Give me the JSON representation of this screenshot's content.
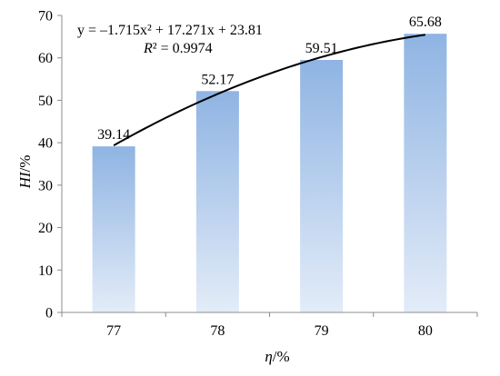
{
  "chart_data": {
    "type": "bar",
    "categories": [
      "77",
      "78",
      "79",
      "80"
    ],
    "values": [
      39.14,
      52.17,
      59.51,
      65.68
    ],
    "data_labels": [
      "39.14",
      "52.17",
      "59.51",
      "65.68"
    ],
    "ylim": [
      0,
      70
    ],
    "yticks": [
      0,
      10,
      20,
      30,
      40,
      50,
      60,
      70
    ],
    "ytick_labels": [
      "0",
      "10",
      "20",
      "30",
      "40",
      "50",
      "60",
      "70"
    ],
    "xlabel": {
      "symbol": "η",
      "unit": "/%"
    },
    "ylabel": {
      "symbol": "HI",
      "unit": "/%"
    },
    "grid": false,
    "bar_gradient": {
      "top": "#8fb4e3",
      "bottom": "#e3ecf8"
    },
    "trendline": {
      "type": "polynomial",
      "equation": "y = –1.715x² + 17.271x + 23.81",
      "r2_label": "R",
      "r2_value": "² = 0.9974",
      "coefficients": [
        -1.715,
        17.271,
        23.81
      ],
      "color": "#000000"
    }
  }
}
